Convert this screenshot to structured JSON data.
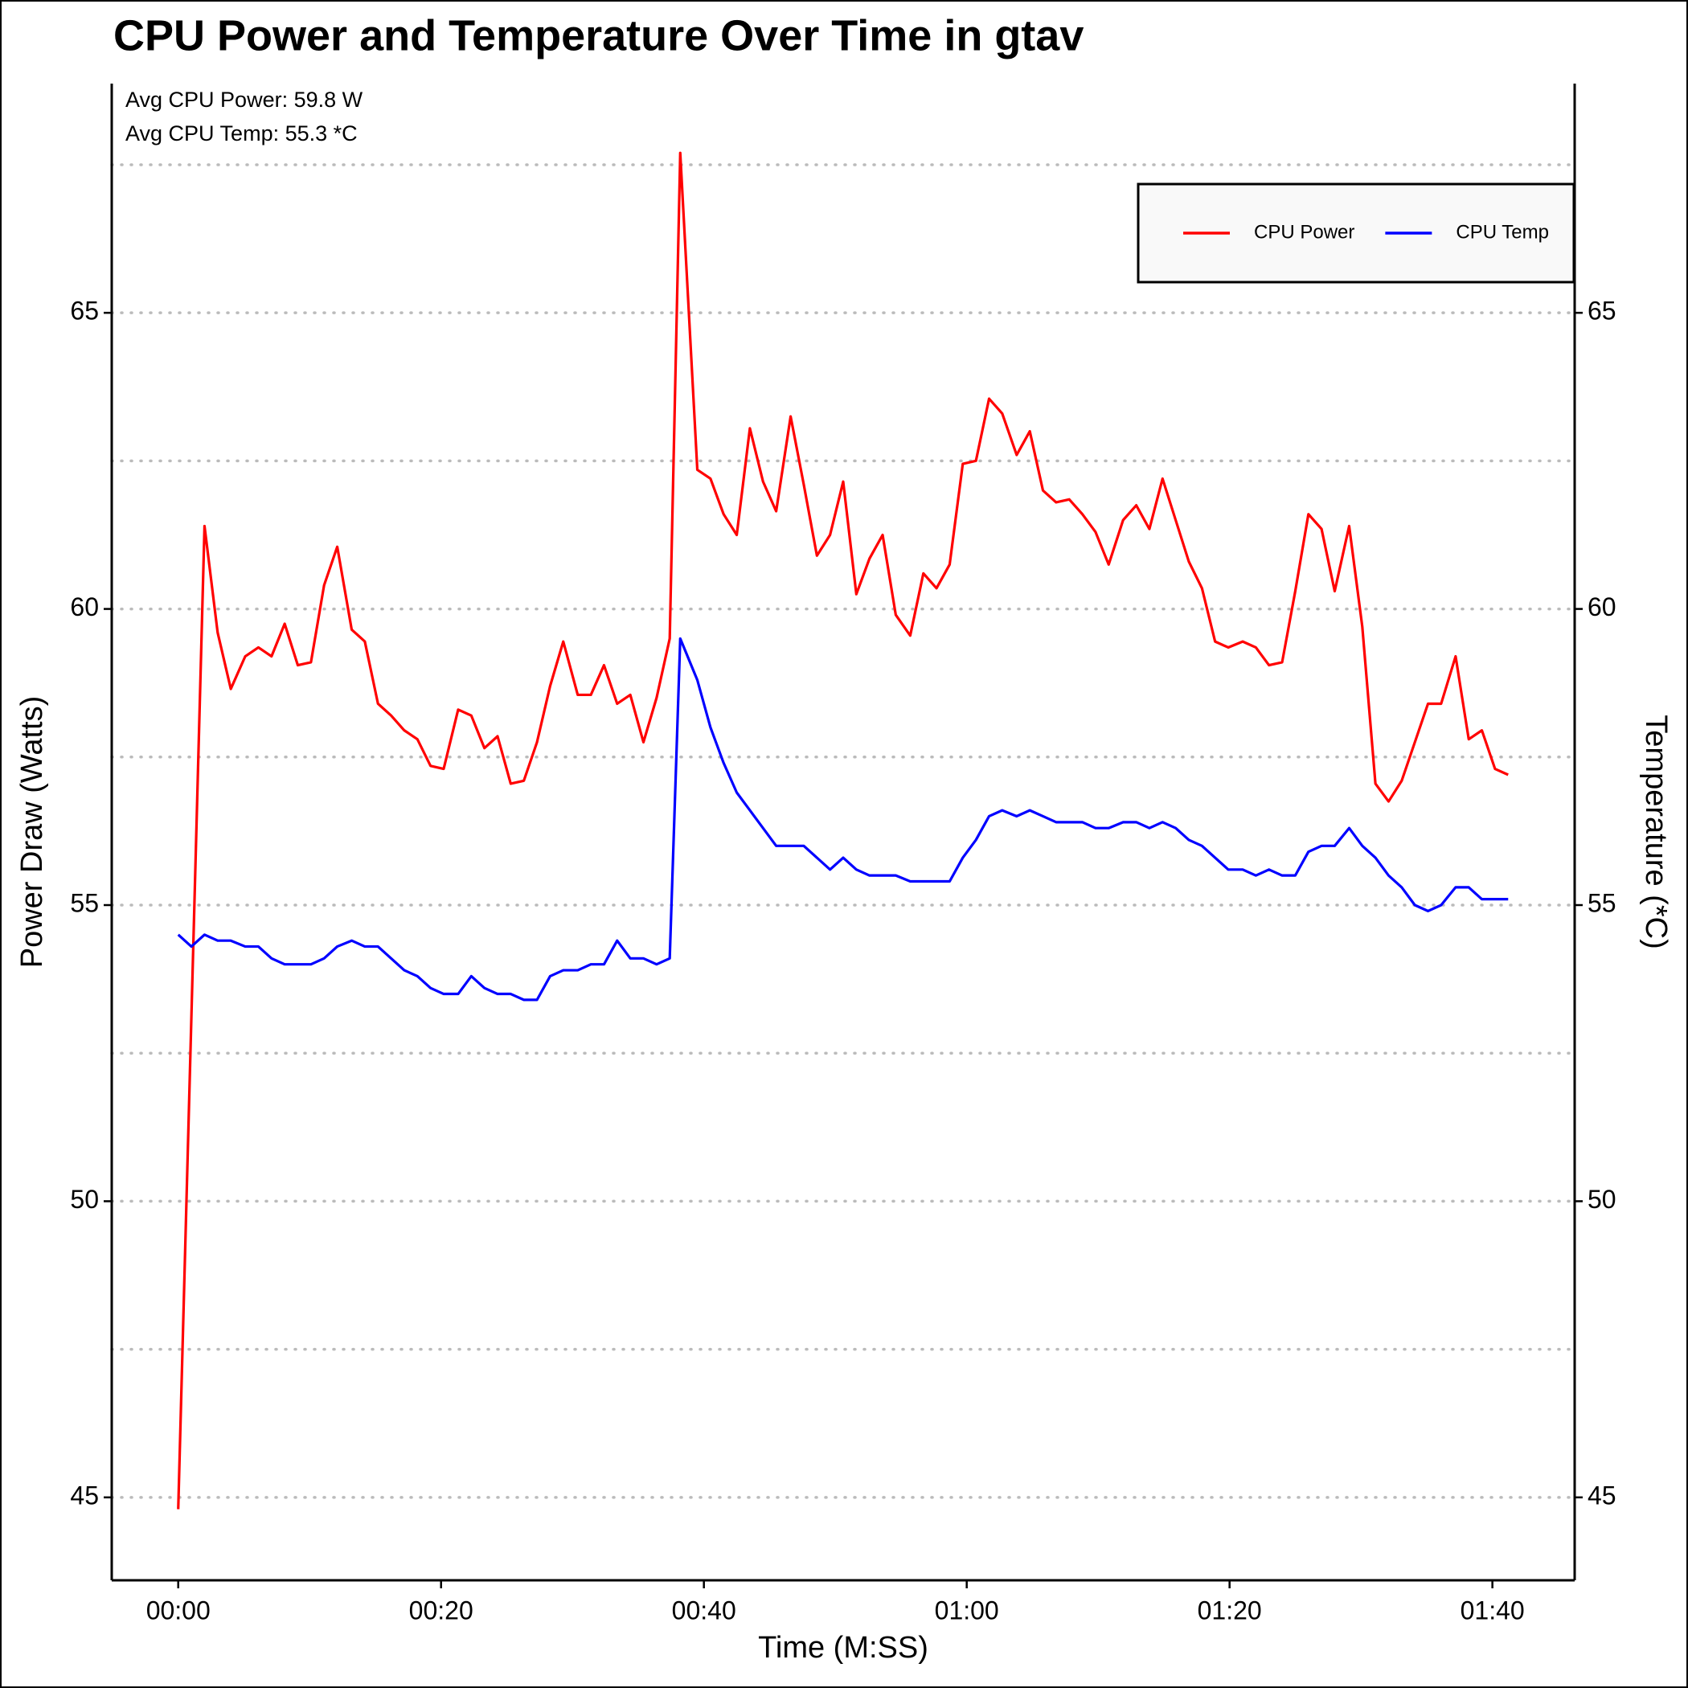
{
  "chart_data": {
    "type": "line",
    "title": "CPU Power and Temperature Over Time in gtav",
    "x_label": "Time (M:SS)",
    "y_label": "Power Draw (Watts)",
    "y2_label": "Temperature (*C)",
    "annotations": [
      "Avg CPU Power: 59.8 W",
      "Avg CPU Temp: 55.3 *C"
    ],
    "x": [
      0,
      1,
      2,
      3,
      4,
      5.1,
      6.1,
      7.1,
      8.1,
      9.1,
      10.1,
      11.1,
      12.1,
      13.2,
      14.2,
      15.2,
      16.2,
      17.2,
      18.2,
      19.2,
      20.2,
      21.3,
      22.3,
      23.3,
      24.3,
      25.3,
      26.3,
      27.3,
      28.3,
      29.3,
      30.4,
      31.4,
      32.4,
      33.4,
      34.4,
      35.4,
      36.4,
      37.4,
      38.2,
      39.5,
      40.5,
      41.5,
      42.5,
      43.5,
      44.5,
      45.5,
      46.6,
      47.6,
      48.6,
      49.6,
      50.6,
      51.6,
      52.6,
      53.6,
      54.6,
      55.7,
      56.7,
      57.7,
      58.7,
      59.7,
      60.7,
      61.7,
      62.7,
      63.8,
      64.8,
      65.8,
      66.8,
      67.8,
      68.8,
      69.8,
      70.8,
      71.9,
      72.9,
      73.9,
      74.9,
      75.9,
      76.9,
      77.9,
      78.9,
      79.9,
      81,
      82,
      83,
      84,
      85,
      86,
      87,
      88,
      89.1,
      90.1,
      91.1,
      92.1,
      93.1,
      94.1,
      95.1,
      96.1,
      97.2,
      98.2,
      99.2,
      100.2,
      101.2
    ],
    "series": [
      {
        "name": "CPU Power",
        "color": "#ff0000",
        "values": [
          44.8,
          53.1,
          61.4,
          59.6,
          58.65,
          59.2,
          59.35,
          59.2,
          59.75,
          59.05,
          59.1,
          60.4,
          61.05,
          59.65,
          59.45,
          58.4,
          58.2,
          57.95,
          57.8,
          57.35,
          57.3,
          58.3,
          58.2,
          57.65,
          57.85,
          57.05,
          57.1,
          57.75,
          58.7,
          59.45,
          58.55,
          58.55,
          59.05,
          58.4,
          58.55,
          57.75,
          58.5,
          59.5,
          67.7,
          62.35,
          62.2,
          61.6,
          61.25,
          63.05,
          62.15,
          61.65,
          63.25,
          62.1,
          60.9,
          61.25,
          62.15,
          60.25,
          60.85,
          61.25,
          59.9,
          59.55,
          60.6,
          60.35,
          60.75,
          62.45,
          62.5,
          63.55,
          63.3,
          62.6,
          63.0,
          62.0,
          61.8,
          61.85,
          61.6,
          61.3,
          60.75,
          61.5,
          61.75,
          61.35,
          62.2,
          61.5,
          60.8,
          60.35,
          59.45,
          59.35,
          59.45,
          59.35,
          59.05,
          59.1,
          60.3,
          61.6,
          61.35,
          60.3,
          61.4,
          59.7,
          57.05,
          56.75,
          57.1,
          57.75,
          58.4,
          58.4,
          59.2,
          57.8,
          57.95,
          57.3,
          57.2
        ]
      },
      {
        "name": "CPU Temp",
        "color": "#0000ff",
        "axis": "y2",
        "values": [
          54.5,
          54.3,
          54.5,
          54.4,
          54.4,
          54.3,
          54.3,
          54.1,
          54.0,
          54.0,
          54.0,
          54.1,
          54.3,
          54.4,
          54.3,
          54.3,
          54.1,
          53.9,
          53.8,
          53.6,
          53.5,
          53.5,
          53.8,
          53.6,
          53.5,
          53.5,
          53.4,
          53.4,
          53.8,
          53.9,
          53.9,
          54.0,
          54.0,
          54.4,
          54.1,
          54.1,
          54.0,
          54.1,
          59.5,
          58.8,
          58.0,
          57.4,
          56.9,
          56.6,
          56.3,
          56.0,
          56.0,
          56.0,
          55.8,
          55.6,
          55.8,
          55.6,
          55.5,
          55.5,
          55.5,
          55.4,
          55.4,
          55.4,
          55.4,
          55.8,
          56.1,
          56.5,
          56.6,
          56.5,
          56.6,
          56.5,
          56.4,
          56.4,
          56.4,
          56.3,
          56.3,
          56.4,
          56.4,
          56.3,
          56.4,
          56.3,
          56.1,
          56.0,
          55.8,
          55.6,
          55.6,
          55.5,
          55.6,
          55.5,
          55.5,
          55.9,
          56.0,
          56.0,
          56.3,
          56.0,
          55.8,
          55.5,
          55.3,
          55.0,
          54.9,
          55.0,
          55.3,
          55.3,
          55.1,
          55.1,
          55.1
        ]
      }
    ],
    "xlim": [
      -5.06,
      106.26
    ],
    "xticks": [
      {
        "value": 0,
        "label": "00:00"
      },
      {
        "value": 20,
        "label": "00:20"
      },
      {
        "value": 40,
        "label": "00:40"
      },
      {
        "value": 60,
        "label": "01:00"
      },
      {
        "value": 80,
        "label": "01:20"
      },
      {
        "value": 100,
        "label": "01:40"
      }
    ],
    "ylim": [
      43.6,
      68.87
    ],
    "yticks": [
      45,
      50,
      55,
      60,
      65
    ],
    "minor_yticks": [
      47.5,
      52.5,
      57.5,
      62.5,
      67.5
    ],
    "y2lim": [
      43.6,
      68.87
    ],
    "y2ticks": [
      45,
      50,
      55,
      60,
      65
    ],
    "grid": true,
    "legend": "top-right"
  }
}
